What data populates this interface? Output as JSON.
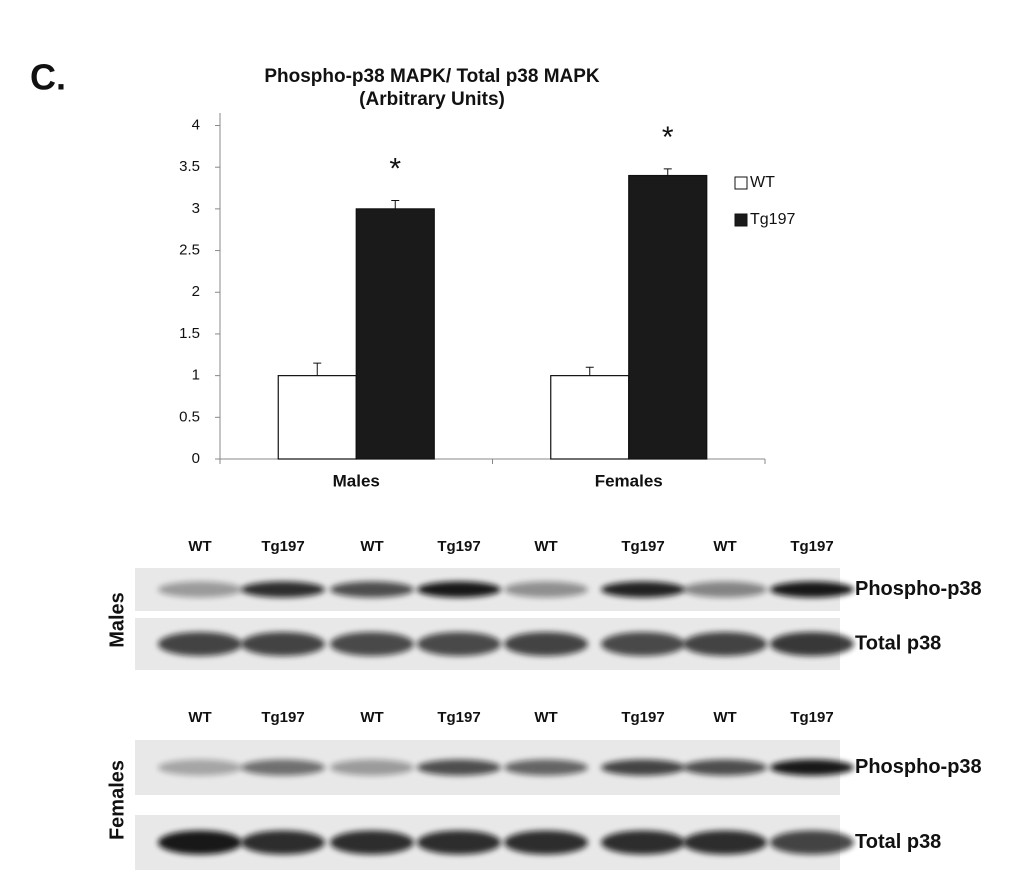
{
  "panel_label": "C.",
  "chart_data": {
    "type": "bar",
    "title": "Phospho-p38 MAPK/ Total p38 MAPK",
    "subtitle": "(Arbitrary Units)",
    "categories": [
      "Males",
      "Females"
    ],
    "series": [
      {
        "name": "WT",
        "color": "#ffffff",
        "values": [
          1,
          1
        ],
        "errors": [
          0.15,
          0.1
        ]
      },
      {
        "name": "Tg197",
        "color": "#1a1a1a",
        "values": [
          3.0,
          3.4
        ],
        "errors": [
          0.1,
          0.08
        ]
      }
    ],
    "annotations": [
      "*",
      "*"
    ],
    "ylim": [
      0,
      4.15
    ],
    "yticks": [
      0,
      0.5,
      1,
      1.5,
      2,
      2.5,
      3,
      3.5,
      4
    ],
    "grid": false,
    "legend": "right"
  },
  "blots": [
    {
      "label": "Males",
      "lanes": [
        "WT",
        "Tg197",
        "WT",
        "Tg197",
        "WT",
        "Tg197",
        "WT",
        "Tg197"
      ],
      "rows": [
        "Phospho-p38",
        "Total p38"
      ]
    },
    {
      "label": "Females",
      "lanes": [
        "WT",
        "Tg197",
        "WT",
        "Tg197",
        "WT",
        "Tg197",
        "WT",
        "Tg197"
      ],
      "rows": [
        "Phospho-p38",
        "Total p38"
      ]
    }
  ]
}
